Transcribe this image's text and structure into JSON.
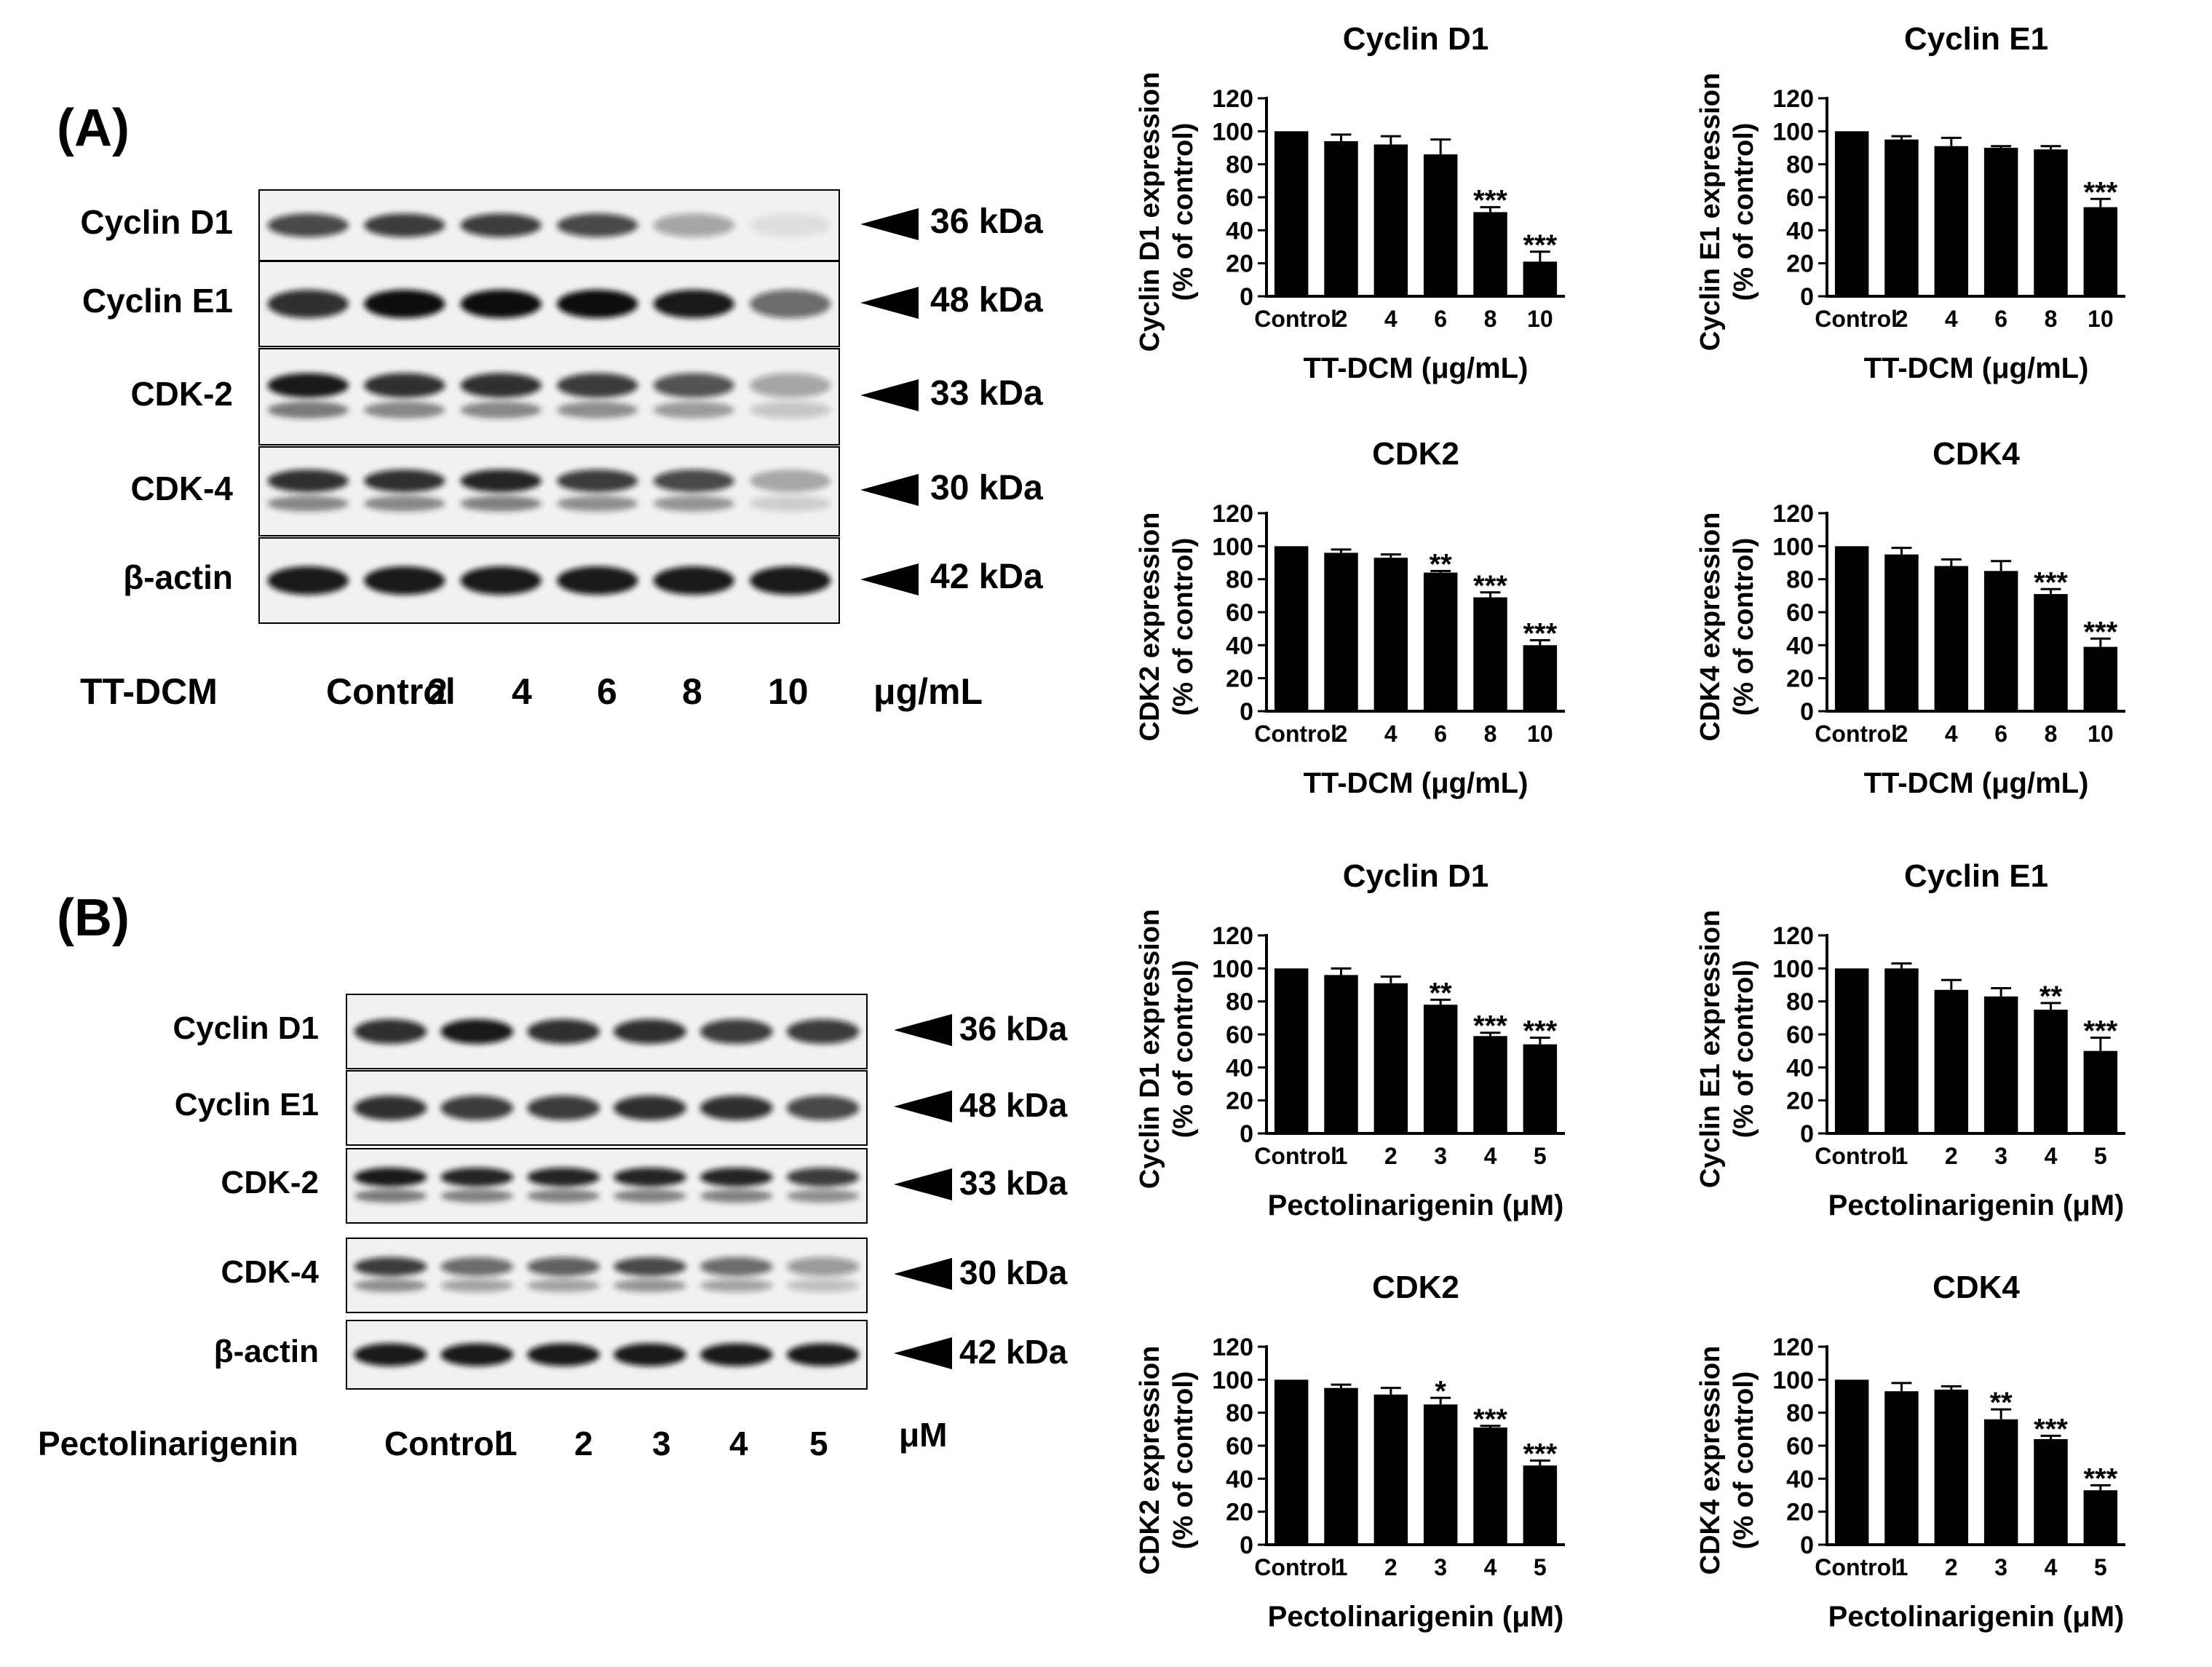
{
  "panels": [
    {
      "label": "(A)",
      "treatment_label": "TT-DCM",
      "unit": "μg/mL",
      "lanes": [
        "Control",
        "2",
        "4",
        "6",
        "8",
        "10"
      ],
      "blots": [
        {
          "protein": "Cyclin D1",
          "kda": "36 kDa",
          "intensity": [
            0.75,
            0.8,
            0.8,
            0.75,
            0.35,
            0.08
          ],
          "double": false
        },
        {
          "protein": "Cyclin E1",
          "kda": "48 kDa",
          "intensity": [
            0.85,
            1.0,
            1.0,
            1.0,
            0.95,
            0.6
          ],
          "double": false
        },
        {
          "protein": "CDK-2",
          "kda": "33 kDa",
          "intensity": [
            0.95,
            0.85,
            0.85,
            0.8,
            0.7,
            0.35
          ],
          "double": true
        },
        {
          "protein": "CDK-4",
          "kda": "30 kDa",
          "intensity": [
            0.85,
            0.85,
            0.9,
            0.8,
            0.75,
            0.3
          ],
          "double": true
        },
        {
          "protein": "β-actin",
          "kda": "42 kDa",
          "intensity": [
            0.95,
            0.95,
            0.95,
            0.95,
            0.95,
            0.95
          ],
          "double": false
        }
      ]
    },
    {
      "label": "(B)",
      "treatment_label": "Pectolinarigenin",
      "unit": "μM",
      "lanes": [
        "Control",
        "1",
        "2",
        "3",
        "4",
        "5"
      ],
      "blots": [
        {
          "protein": "Cyclin D1",
          "kda": "36 kDa",
          "intensity": [
            0.85,
            0.95,
            0.85,
            0.85,
            0.8,
            0.8
          ],
          "double": false
        },
        {
          "protein": "Cyclin E1",
          "kda": "48 kDa",
          "intensity": [
            0.85,
            0.8,
            0.8,
            0.85,
            0.85,
            0.75
          ],
          "double": false
        },
        {
          "protein": "CDK-2",
          "kda": "33 kDa",
          "intensity": [
            0.95,
            0.9,
            0.9,
            0.9,
            0.9,
            0.8
          ],
          "double": true
        },
        {
          "protein": "CDK-4",
          "kda": "30 kDa",
          "intensity": [
            0.8,
            0.6,
            0.65,
            0.75,
            0.6,
            0.4
          ],
          "double": true
        },
        {
          "protein": "β-actin",
          "kda": "42 kDa",
          "intensity": [
            0.95,
            0.95,
            0.95,
            0.95,
            0.95,
            0.95
          ],
          "double": false
        }
      ]
    }
  ],
  "chart_data": [
    {
      "type": "bar",
      "title": "Cyclin D1",
      "ylabel": [
        "Cyclin D1 expression",
        "(% of control)"
      ],
      "xlabel": "TT-DCM (μg/mL)",
      "categories": [
        "Control",
        "2",
        "4",
        "6",
        "8",
        "10"
      ],
      "values": [
        100,
        94,
        92,
        86,
        51,
        21
      ],
      "errors": [
        0,
        4,
        5,
        9,
        3,
        6
      ],
      "significance": [
        "",
        "",
        "",
        "",
        "***",
        "***"
      ],
      "ylim": [
        0,
        120
      ],
      "yticks": [
        0,
        20,
        40,
        60,
        80,
        100,
        120
      ]
    },
    {
      "type": "bar",
      "title": "Cyclin E1",
      "ylabel": [
        "Cyclin E1 expression",
        "(% of control)"
      ],
      "xlabel": "TT-DCM (μg/mL)",
      "categories": [
        "Control",
        "2",
        "4",
        "6",
        "8",
        "10"
      ],
      "values": [
        100,
        95,
        91,
        90,
        89,
        54
      ],
      "errors": [
        0,
        2,
        5,
        1,
        2,
        5
      ],
      "significance": [
        "",
        "",
        "",
        "",
        "",
        "***"
      ],
      "ylim": [
        0,
        120
      ],
      "yticks": [
        0,
        20,
        40,
        60,
        80,
        100,
        120
      ]
    },
    {
      "type": "bar",
      "title": "CDK2",
      "ylabel": [
        "CDK2 expression",
        "(% of control)"
      ],
      "xlabel": "TT-DCM (μg/mL)",
      "categories": [
        "Control",
        "2",
        "4",
        "6",
        "8",
        "10"
      ],
      "values": [
        100,
        96,
        93,
        84,
        69,
        40
      ],
      "errors": [
        0,
        2,
        2,
        1,
        3,
        3
      ],
      "significance": [
        "",
        "",
        "",
        "**",
        "***",
        "***"
      ],
      "ylim": [
        0,
        120
      ],
      "yticks": [
        0,
        20,
        40,
        60,
        80,
        100,
        120
      ]
    },
    {
      "type": "bar",
      "title": "CDK4",
      "ylabel": [
        "CDK4 expression",
        "(% of control)"
      ],
      "xlabel": "TT-DCM (μg/mL)",
      "categories": [
        "Control",
        "2",
        "4",
        "6",
        "8",
        "10"
      ],
      "values": [
        100,
        95,
        88,
        85,
        71,
        39
      ],
      "errors": [
        0,
        4,
        4,
        6,
        3,
        5
      ],
      "significance": [
        "",
        "",
        "",
        "",
        "***",
        "***"
      ],
      "ylim": [
        0,
        120
      ],
      "yticks": [
        0,
        20,
        40,
        60,
        80,
        100,
        120
      ]
    },
    {
      "type": "bar",
      "title": "Cyclin D1",
      "ylabel": [
        "Cyclin D1 expression",
        "(% of control)"
      ],
      "xlabel": "Pectolinarigenin (μM)",
      "categories": [
        "Control",
        "1",
        "2",
        "3",
        "4",
        "5"
      ],
      "values": [
        100,
        96,
        91,
        78,
        59,
        54
      ],
      "errors": [
        0,
        4,
        4,
        3,
        2,
        4
      ],
      "significance": [
        "",
        "",
        "",
        "**",
        "***",
        "***"
      ],
      "ylim": [
        0,
        120
      ],
      "yticks": [
        0,
        20,
        40,
        60,
        80,
        100,
        120
      ]
    },
    {
      "type": "bar",
      "title": "Cyclin E1",
      "ylabel": [
        "Cyclin E1 expression",
        "(% of control)"
      ],
      "xlabel": "Pectolinarigenin (μM)",
      "categories": [
        "Control",
        "1",
        "2",
        "3",
        "4",
        "5"
      ],
      "values": [
        100,
        100,
        87,
        83,
        75,
        50
      ],
      "errors": [
        0,
        3,
        6,
        5,
        4,
        8
      ],
      "significance": [
        "",
        "",
        "",
        "",
        "**",
        "***"
      ],
      "ylim": [
        0,
        120
      ],
      "yticks": [
        0,
        20,
        40,
        60,
        80,
        100,
        120
      ]
    },
    {
      "type": "bar",
      "title": "CDK2",
      "ylabel": [
        "CDK2 expression",
        "(% of control)"
      ],
      "xlabel": "Pectolinarigenin (μM)",
      "categories": [
        "Control",
        "1",
        "2",
        "3",
        "4",
        "5"
      ],
      "values": [
        100,
        95,
        91,
        85,
        71,
        48
      ],
      "errors": [
        0,
        2,
        4,
        4,
        1,
        3
      ],
      "significance": [
        "",
        "",
        "",
        "*",
        "***",
        "***"
      ],
      "ylim": [
        0,
        120
      ],
      "yticks": [
        0,
        20,
        40,
        60,
        80,
        100,
        120
      ]
    },
    {
      "type": "bar",
      "title": "CDK4",
      "ylabel": [
        "CDK4 expression",
        "(% of control)"
      ],
      "xlabel": "Pectolinarigenin (μM)",
      "categories": [
        "Control",
        "1",
        "2",
        "3",
        "4",
        "5"
      ],
      "values": [
        100,
        93,
        94,
        76,
        64,
        33
      ],
      "errors": [
        0,
        5,
        2,
        6,
        2,
        3
      ],
      "significance": [
        "",
        "",
        "",
        "**",
        "***",
        "***"
      ],
      "ylim": [
        0,
        120
      ],
      "yticks": [
        0,
        20,
        40,
        60,
        80,
        100,
        120
      ]
    }
  ]
}
